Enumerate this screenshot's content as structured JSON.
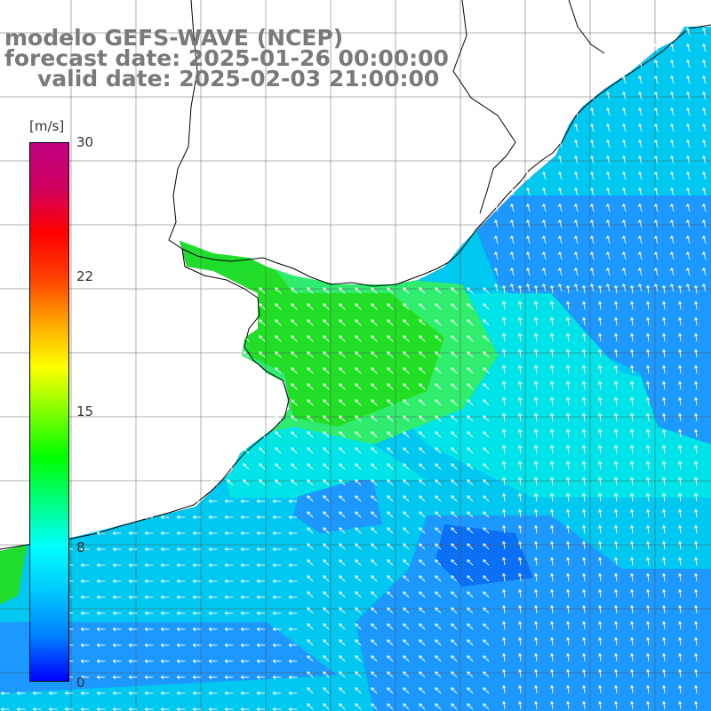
{
  "title": {
    "line1": "modelo GEFS-WAVE (NCEP)",
    "line2": "forecast date: 2025-01-26 00:00:00",
    "line3": "valid date: 2025-02-03 21:00:00"
  },
  "colorbar": {
    "unit": "[m/s]",
    "min": 0,
    "max": 30,
    "ticks": [
      {
        "label": "30",
        "value": 30
      },
      {
        "label": "22",
        "value": 22
      },
      {
        "label": "15",
        "value": 15
      },
      {
        "label": "8",
        "value": 8
      },
      {
        "label": "0",
        "value": 0
      }
    ],
    "colors": [
      "#0000ff",
      "#0080ff",
      "#00c8ff",
      "#00ffff",
      "#00ff80",
      "#00ff00",
      "#80ff00",
      "#ffff00",
      "#ffa500",
      "#ff4000",
      "#ff0000",
      "#d00060",
      "#c00080"
    ]
  },
  "map": {
    "land_color": "#ffffff",
    "coast_color": "#000000",
    "grid_color": "#555555",
    "arrow_color": "#ffffff",
    "field_colors": {
      "green": "#22dd22",
      "light_green": "#33ee66",
      "cyan": "#00e6e6",
      "light_blue": "#00c8f0",
      "mid_blue": "#1e96ff",
      "deep_blue": "#0a6ef5"
    }
  }
}
